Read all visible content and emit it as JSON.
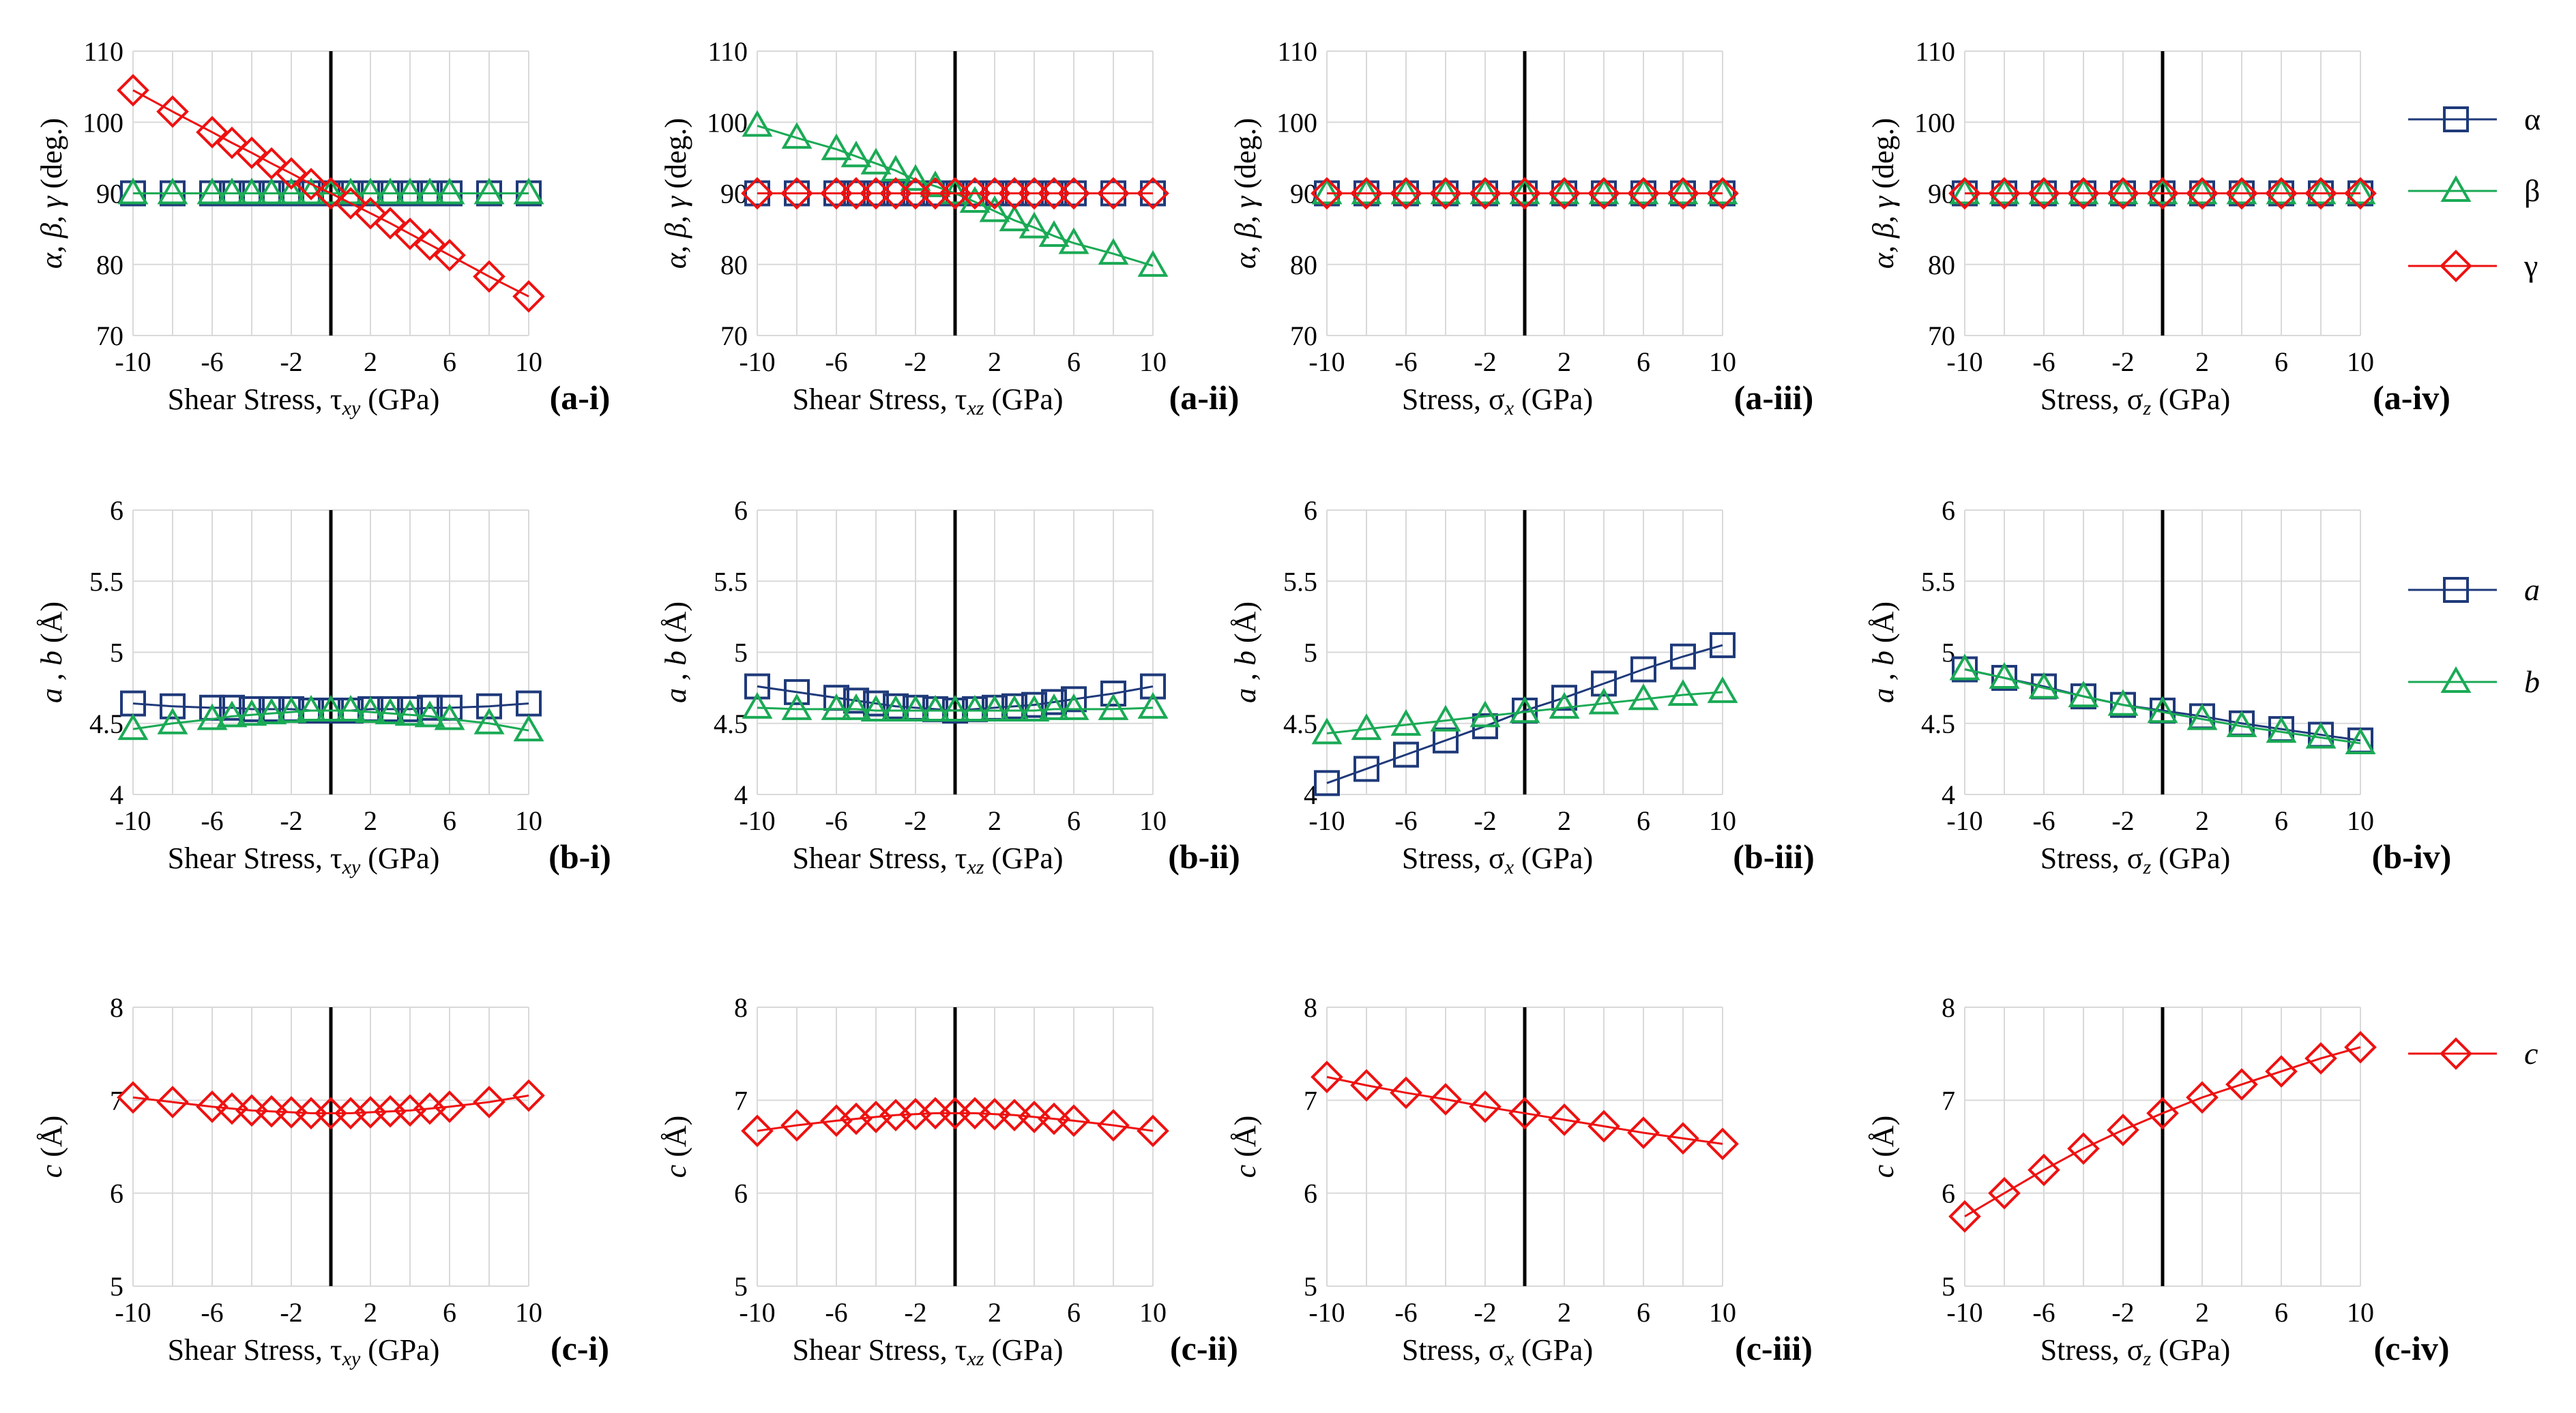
{
  "colors": {
    "alpha": "#1f3a7a",
    "beta": "#1aaa55",
    "gamma": "#ee1111"
  },
  "legends": [
    {
      "entries": [
        {
          "label": "α",
          "key": "alpha",
          "marker": "square"
        },
        {
          "label": "β",
          "key": "beta",
          "marker": "triangle"
        },
        {
          "label": "γ",
          "key": "gamma",
          "marker": "diamond"
        }
      ]
    },
    {
      "entries": [
        {
          "label": "a",
          "key": "alpha",
          "marker": "square",
          "italic": true
        },
        {
          "label": "b",
          "key": "beta",
          "marker": "triangle",
          "italic": true
        }
      ]
    },
    {
      "entries": [
        {
          "label": "c",
          "key": "gamma",
          "marker": "diamond",
          "italic": true
        }
      ]
    }
  ],
  "chart_data": [
    {
      "id": "a-i",
      "type": "line",
      "panel_label": "(a-i)",
      "xlabel": "Shear Stress, τxy (GPa)",
      "ylabel": "α, β, γ (deg.)",
      "xticks": [
        "-10",
        "-6",
        "-2",
        "2",
        "6",
        "10"
      ],
      "yticks": [
        "70",
        "80",
        "90",
        "100",
        "110"
      ],
      "ylim": [
        70,
        110
      ],
      "xlim": [
        -10,
        10
      ],
      "x": [
        -10,
        -8,
        -6,
        -5,
        -4,
        -3,
        -2,
        -1,
        0,
        1,
        2,
        3,
        4,
        5,
        6,
        8,
        10
      ],
      "series": [
        {
          "name": "α",
          "key": "alpha",
          "marker": "square",
          "values": [
            90,
            90,
            90,
            90,
            90,
            90,
            90,
            90,
            90,
            90,
            90,
            90,
            90,
            90,
            90,
            90,
            90
          ]
        },
        {
          "name": "β",
          "key": "beta",
          "marker": "triangle",
          "values": [
            90,
            90,
            90,
            90,
            90,
            90,
            90,
            90,
            90,
            90,
            90,
            90,
            90,
            90,
            90,
            90,
            90
          ]
        },
        {
          "name": "γ",
          "key": "gamma",
          "marker": "diamond",
          "values": [
            104.5,
            101.5,
            98.6,
            97.1,
            95.7,
            94.2,
            92.8,
            91.3,
            90,
            88.6,
            87.2,
            85.8,
            84.3,
            82.8,
            81.3,
            78.3,
            75.5
          ]
        }
      ]
    },
    {
      "id": "a-ii",
      "type": "line",
      "panel_label": "(a-ii)",
      "xlabel": "Shear Stress, τxz (GPa)",
      "ylabel": "α, β, γ (deg.)",
      "xticks": [
        "-10",
        "-6",
        "-2",
        "2",
        "6",
        "10"
      ],
      "yticks": [
        "70",
        "80",
        "90",
        "100",
        "110"
      ],
      "ylim": [
        70,
        110
      ],
      "xlim": [
        -10,
        10
      ],
      "x": [
        -10,
        -8,
        -6,
        -5,
        -4,
        -3,
        -2,
        -1,
        0,
        1,
        2,
        3,
        4,
        5,
        6,
        8,
        10
      ],
      "series": [
        {
          "name": "α",
          "key": "alpha",
          "marker": "square",
          "values": [
            90,
            90,
            90,
            90,
            90,
            90,
            90,
            90,
            90,
            90,
            90,
            90,
            90,
            90,
            90,
            90,
            90
          ]
        },
        {
          "name": "β",
          "key": "beta",
          "marker": "triangle",
          "values": [
            99.5,
            97.8,
            96.2,
            95.2,
            94.2,
            93.2,
            91.9,
            91,
            90,
            88.8,
            87.5,
            86.2,
            85.2,
            84,
            83,
            81.5,
            79.8
          ]
        },
        {
          "name": "γ",
          "key": "gamma",
          "marker": "diamond",
          "values": [
            90,
            90,
            90,
            90,
            90,
            90,
            90,
            90,
            90,
            90,
            90,
            90,
            90,
            90,
            90,
            90,
            90
          ]
        }
      ]
    },
    {
      "id": "a-iii",
      "type": "line",
      "panel_label": "(a-iii)",
      "xlabel": "Stress, σx (GPa)",
      "ylabel": "α, β, γ (deg.)",
      "xticks": [
        "-10",
        "-6",
        "-2",
        "2",
        "6",
        "10"
      ],
      "yticks": [
        "70",
        "80",
        "90",
        "100",
        "110"
      ],
      "ylim": [
        70,
        110
      ],
      "xlim": [
        -10,
        10
      ],
      "x": [
        -10,
        -8,
        -6,
        -4,
        -2,
        0,
        2,
        4,
        6,
        8,
        10
      ],
      "series": [
        {
          "name": "α",
          "key": "alpha",
          "marker": "square",
          "values": [
            90,
            90,
            90,
            90,
            90,
            90,
            90,
            90,
            90,
            90,
            90
          ]
        },
        {
          "name": "β",
          "key": "beta",
          "marker": "triangle",
          "values": [
            90,
            90,
            90,
            90,
            90,
            90,
            90,
            90,
            90,
            90,
            90
          ]
        },
        {
          "name": "γ",
          "key": "gamma",
          "marker": "diamond",
          "values": [
            90,
            90,
            90,
            90,
            90,
            90,
            90,
            90,
            90,
            90,
            90
          ]
        }
      ]
    },
    {
      "id": "a-iv",
      "type": "line",
      "panel_label": "(a-iv)",
      "xlabel": "Stress, σz (GPa)",
      "ylabel": "α, β, γ (deg.)",
      "xticks": [
        "-10",
        "-6",
        "-2",
        "2",
        "6",
        "10"
      ],
      "yticks": [
        "70",
        "80",
        "90",
        "100",
        "110"
      ],
      "ylim": [
        70,
        110
      ],
      "xlim": [
        -10,
        10
      ],
      "x": [
        -10,
        -8,
        -6,
        -4,
        -2,
        0,
        2,
        4,
        6,
        8,
        10
      ],
      "series": [
        {
          "name": "α",
          "key": "alpha",
          "marker": "square",
          "values": [
            90,
            90,
            90,
            90,
            90,
            90,
            90,
            90,
            90,
            90,
            90
          ]
        },
        {
          "name": "β",
          "key": "beta",
          "marker": "triangle",
          "values": [
            90,
            90,
            90,
            90,
            90,
            90,
            90,
            90,
            90,
            90,
            90
          ]
        },
        {
          "name": "γ",
          "key": "gamma",
          "marker": "diamond",
          "values": [
            90,
            90,
            90,
            90,
            90,
            90,
            90,
            90,
            90,
            90,
            90
          ]
        }
      ]
    },
    {
      "id": "b-i",
      "type": "line",
      "panel_label": "(b-i)",
      "xlabel": "Shear Stress, τxy (GPa)",
      "ylabel": "a , b (Å)",
      "xticks": [
        "-10",
        "-6",
        "-2",
        "2",
        "6",
        "10"
      ],
      "yticks": [
        "4",
        "4.5",
        "5",
        "5.5",
        "6"
      ],
      "ylim": [
        4,
        6
      ],
      "xlim": [
        -10,
        10
      ],
      "x": [
        -10,
        -8,
        -6,
        -5,
        -4,
        -3,
        -2,
        -1,
        0,
        1,
        2,
        3,
        4,
        5,
        6,
        8,
        10
      ],
      "series": [
        {
          "name": "a",
          "key": "alpha",
          "marker": "square",
          "values": [
            4.64,
            4.62,
            4.61,
            4.61,
            4.6,
            4.6,
            4.6,
            4.59,
            4.59,
            4.59,
            4.6,
            4.6,
            4.6,
            4.61,
            4.61,
            4.62,
            4.64
          ]
        },
        {
          "name": "b",
          "key": "beta",
          "marker": "triangle",
          "values": [
            4.46,
            4.5,
            4.53,
            4.55,
            4.56,
            4.57,
            4.58,
            4.59,
            4.59,
            4.59,
            4.58,
            4.57,
            4.56,
            4.55,
            4.53,
            4.5,
            4.45
          ]
        }
      ]
    },
    {
      "id": "b-ii",
      "type": "line",
      "panel_label": "(b-ii)",
      "xlabel": "Shear Stress, τxz (GPa)",
      "ylabel": "a , b (Å)",
      "xticks": [
        "-10",
        "-6",
        "-2",
        "2",
        "6",
        "10"
      ],
      "yticks": [
        "4",
        "4.5",
        "5",
        "5.5",
        "6"
      ],
      "ylim": [
        4,
        6
      ],
      "xlim": [
        -10,
        10
      ],
      "x": [
        -10,
        -8,
        -6,
        -5,
        -4,
        -3,
        -2,
        -1,
        0,
        1,
        2,
        3,
        4,
        5,
        6,
        8,
        10
      ],
      "series": [
        {
          "name": "a",
          "key": "alpha",
          "marker": "square",
          "values": [
            4.76,
            4.72,
            4.68,
            4.66,
            4.64,
            4.62,
            4.61,
            4.6,
            4.59,
            4.6,
            4.61,
            4.62,
            4.63,
            4.65,
            4.67,
            4.71,
            4.76
          ]
        },
        {
          "name": "b",
          "key": "beta",
          "marker": "triangle",
          "values": [
            4.61,
            4.6,
            4.6,
            4.6,
            4.59,
            4.59,
            4.59,
            4.59,
            4.59,
            4.59,
            4.59,
            4.59,
            4.59,
            4.6,
            4.6,
            4.6,
            4.61
          ]
        }
      ]
    },
    {
      "id": "b-iii",
      "type": "line",
      "panel_label": "(b-iii)",
      "xlabel": "Stress, σx (GPa)",
      "ylabel": "a , b (Å)",
      "xticks": [
        "-10",
        "-6",
        "-2",
        "2",
        "6",
        "10"
      ],
      "yticks": [
        "4",
        "4.5",
        "5",
        "5.5",
        "6"
      ],
      "ylim": [
        4,
        6
      ],
      "xlim": [
        -10,
        10
      ],
      "x": [
        -10,
        -8,
        -6,
        -4,
        -2,
        0,
        2,
        4,
        6,
        8,
        10
      ],
      "series": [
        {
          "name": "a",
          "key": "alpha",
          "marker": "square",
          "values": [
            4.08,
            4.18,
            4.28,
            4.38,
            4.48,
            4.59,
            4.68,
            4.78,
            4.88,
            4.97,
            5.05
          ]
        },
        {
          "name": "b",
          "key": "beta",
          "marker": "triangle",
          "values": [
            4.43,
            4.46,
            4.49,
            4.52,
            4.55,
            4.58,
            4.61,
            4.64,
            4.67,
            4.7,
            4.72
          ]
        }
      ]
    },
    {
      "id": "b-iv",
      "type": "line",
      "panel_label": "(b-iv)",
      "xlabel": "Stress, σz (GPa)",
      "ylabel": "a , b (Å)",
      "xticks": [
        "-10",
        "-6",
        "-2",
        "2",
        "6",
        "10"
      ],
      "yticks": [
        "4",
        "4.5",
        "5",
        "5.5",
        "6"
      ],
      "ylim": [
        4,
        6
      ],
      "xlim": [
        -10,
        10
      ],
      "x": [
        -10,
        -8,
        -6,
        -4,
        -2,
        0,
        2,
        4,
        6,
        8,
        10
      ],
      "series": [
        {
          "name": "a",
          "key": "alpha",
          "marker": "square",
          "values": [
            4.88,
            4.82,
            4.76,
            4.69,
            4.63,
            4.59,
            4.55,
            4.5,
            4.46,
            4.42,
            4.38
          ]
        },
        {
          "name": "b",
          "key": "beta",
          "marker": "triangle",
          "values": [
            4.88,
            4.82,
            4.75,
            4.69,
            4.63,
            4.58,
            4.53,
            4.48,
            4.44,
            4.4,
            4.36
          ]
        }
      ]
    },
    {
      "id": "c-i",
      "type": "line",
      "panel_label": "(c-i)",
      "xlabel": "Shear Stress, τxy (GPa)",
      "ylabel": "c (Å)",
      "xticks": [
        "-10",
        "-6",
        "-2",
        "2",
        "6",
        "10"
      ],
      "yticks": [
        "5",
        "6",
        "7",
        "8"
      ],
      "ylim": [
        5,
        8
      ],
      "xlim": [
        -10,
        10
      ],
      "x": [
        -10,
        -8,
        -6,
        -5,
        -4,
        -3,
        -2,
        -1,
        0,
        1,
        2,
        3,
        4,
        5,
        6,
        8,
        10
      ],
      "series": [
        {
          "name": "c",
          "key": "gamma",
          "marker": "diamond",
          "values": [
            7.03,
            6.98,
            6.93,
            6.91,
            6.89,
            6.88,
            6.87,
            6.86,
            6.86,
            6.86,
            6.87,
            6.88,
            6.89,
            6.91,
            6.93,
            6.98,
            7.05
          ]
        }
      ]
    },
    {
      "id": "c-ii",
      "type": "line",
      "panel_label": "(c-ii)",
      "xlabel": "Shear Stress, τxz (GPa)",
      "ylabel": "c (Å)",
      "xticks": [
        "-10",
        "-6",
        "-2",
        "2",
        "6",
        "10"
      ],
      "yticks": [
        "5",
        "6",
        "7",
        "8"
      ],
      "ylim": [
        5,
        8
      ],
      "xlim": [
        -10,
        10
      ],
      "x": [
        -10,
        -8,
        -6,
        -5,
        -4,
        -3,
        -2,
        -1,
        0,
        1,
        2,
        3,
        4,
        5,
        6,
        8,
        10
      ],
      "series": [
        {
          "name": "c",
          "key": "gamma",
          "marker": "diamond",
          "values": [
            6.67,
            6.73,
            6.78,
            6.8,
            6.82,
            6.84,
            6.85,
            6.86,
            6.86,
            6.86,
            6.85,
            6.84,
            6.82,
            6.8,
            6.78,
            6.73,
            6.67
          ]
        }
      ]
    },
    {
      "id": "c-iii",
      "type": "line",
      "panel_label": "(c-iii)",
      "xlabel": "Stress, σx (GPa)",
      "ylabel": "c (Å)",
      "xticks": [
        "-10",
        "-6",
        "-2",
        "2",
        "6",
        "10"
      ],
      "yticks": [
        "5",
        "6",
        "7",
        "8"
      ],
      "ylim": [
        5,
        8
      ],
      "xlim": [
        -10,
        10
      ],
      "x": [
        -10,
        -8,
        -6,
        -4,
        -2,
        0,
        2,
        4,
        6,
        8,
        10
      ],
      "series": [
        {
          "name": "c",
          "key": "gamma",
          "marker": "diamond",
          "values": [
            7.25,
            7.16,
            7.08,
            7.01,
            6.93,
            6.86,
            6.79,
            6.72,
            6.65,
            6.59,
            6.53
          ]
        }
      ]
    },
    {
      "id": "c-iv",
      "type": "line",
      "panel_label": "(c-iv)",
      "xlabel": "Stress, σz (GPa)",
      "ylabel": "c (Å)",
      "xticks": [
        "-10",
        "-6",
        "-2",
        "2",
        "6",
        "10"
      ],
      "yticks": [
        "5",
        "6",
        "7",
        "8"
      ],
      "ylim": [
        5,
        8
      ],
      "xlim": [
        -10,
        10
      ],
      "x": [
        -10,
        -8,
        -6,
        -4,
        -2,
        0,
        2,
        4,
        6,
        8,
        10
      ],
      "series": [
        {
          "name": "c",
          "key": "gamma",
          "marker": "diamond",
          "values": [
            5.75,
            6.0,
            6.25,
            6.48,
            6.68,
            6.86,
            7.03,
            7.17,
            7.31,
            7.45,
            7.57
          ]
        }
      ]
    }
  ]
}
